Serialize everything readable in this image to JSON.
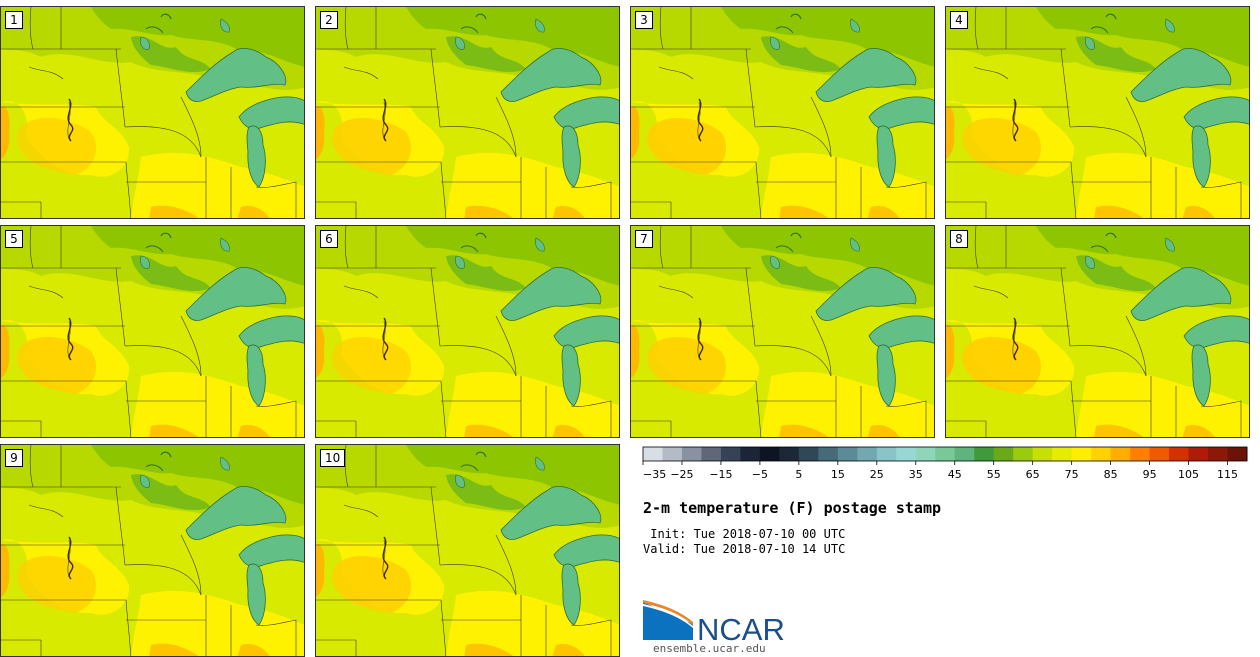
{
  "panels": [
    "1",
    "2",
    "3",
    "4",
    "5",
    "6",
    "7",
    "8",
    "9",
    "10"
  ],
  "colorbar": {
    "colors": [
      "#d9dde6",
      "#b4bbc6",
      "#8892a0",
      "#5e6878",
      "#364255",
      "#1c2538",
      "#0e1424",
      "#1c2838",
      "#2e4858",
      "#466a78",
      "#5c8a98",
      "#73a8b0",
      "#8ac4c8",
      "#98d8d4",
      "#8fd6b8",
      "#78c898",
      "#5eb47a",
      "#3f9a3a",
      "#6aaa18",
      "#9bcc0c",
      "#c8e000",
      "#e6ec00",
      "#ffee00",
      "#ffd200",
      "#ffae00",
      "#ff8000",
      "#f25800",
      "#d43000",
      "#b01a08",
      "#8c1808",
      "#6a1408"
    ],
    "ticks": [
      "−35",
      "−25",
      "−15",
      "−5",
      "5",
      "15",
      "25",
      "35",
      "45",
      "55",
      "65",
      "75",
      "85",
      "95",
      "105",
      "115"
    ]
  },
  "title": "2-m temperature (F) postage stamp",
  "init": " Init: Tue 2018-07-10 00 UTC",
  "valid": "Valid: Tue 2018-07-10 14 UTC",
  "logo": {
    "text": "NCAR",
    "url": "ensemble.ucar.edu",
    "color": "#1b4f8a",
    "accent": "#e8862a"
  }
}
